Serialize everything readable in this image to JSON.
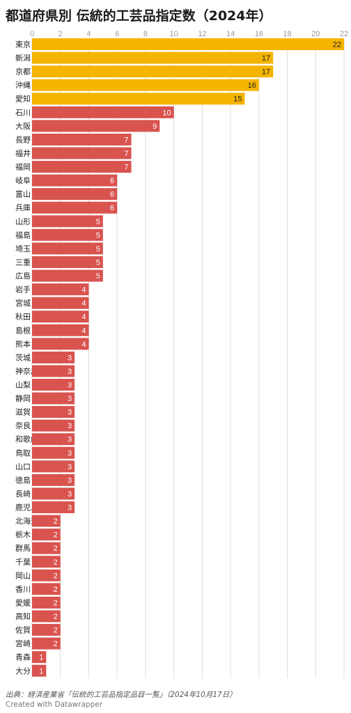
{
  "header": {
    "title": "都道府県別 伝統的工芸品指定数（2024年）"
  },
  "footer": {
    "source": "出典：経済産業省「伝統的工芸品指定品目一覧」（2024年10月17日）",
    "credit": "Created with Datawrapper"
  },
  "colors": {
    "highlight": "#f5b400",
    "default": "#d9534f",
    "grid": "#dddddd",
    "tick": "#999999"
  },
  "chart_data": {
    "type": "bar",
    "orientation": "horizontal",
    "title": "都道府県別 伝統的工芸品指定数（2024年）",
    "xlim": [
      0,
      22
    ],
    "x_ticks": [
      0,
      2,
      4,
      6,
      8,
      10,
      12,
      14,
      16,
      18,
      20,
      22
    ],
    "grid": true,
    "categories": [
      "東京",
      "新潟",
      "京都",
      "沖縄",
      "愛知",
      "石川",
      "大阪",
      "長野",
      "福井",
      "福岡",
      "岐阜",
      "富山",
      "兵庫",
      "山形",
      "福島",
      "埼玉",
      "三重",
      "広島",
      "岩手",
      "宮城",
      "秋田",
      "島根",
      "熊本",
      "茨城",
      "神奈川",
      "山梨",
      "静岡",
      "滋賀",
      "奈良",
      "和歌山",
      "鳥取",
      "山口",
      "徳島",
      "長崎",
      "鹿児島",
      "北海道",
      "栃木",
      "群馬",
      "千葉",
      "岡山",
      "香川",
      "愛媛",
      "高知",
      "佐賀",
      "宮崎",
      "青森",
      "大分"
    ],
    "values": [
      22,
      17,
      17,
      16,
      15,
      10,
      9,
      7,
      7,
      7,
      6,
      6,
      6,
      5,
      5,
      5,
      5,
      5,
      4,
      4,
      4,
      4,
      4,
      3,
      3,
      3,
      3,
      3,
      3,
      3,
      3,
      3,
      3,
      3,
      3,
      2,
      2,
      2,
      2,
      2,
      2,
      2,
      2,
      2,
      2,
      1,
      1
    ],
    "highlighted": [
      "東京",
      "新潟",
      "京都",
      "沖縄",
      "愛知"
    ]
  }
}
